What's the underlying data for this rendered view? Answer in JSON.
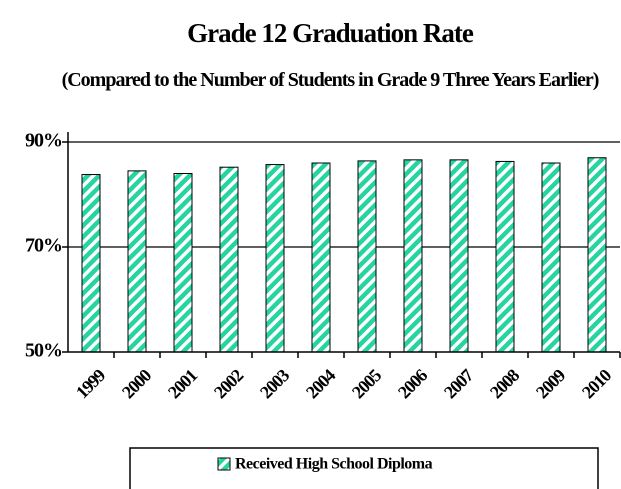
{
  "chart_data": {
    "type": "bar",
    "title": "Grade 12 Graduation Rate",
    "subtitle": "(Compared to the Number of Students in Grade 9 Three Years Earlier)",
    "categories": [
      "1999",
      "2000",
      "2001",
      "2002",
      "2003",
      "2004",
      "2005",
      "2006",
      "2007",
      "2008",
      "2009",
      "2010"
    ],
    "series": [
      {
        "name": "Received High School Diploma",
        "color": "#26d4a0",
        "values": [
          83.8,
          84.5,
          84.0,
          85.2,
          85.7,
          86.0,
          86.4,
          86.6,
          86.6,
          86.3,
          86.0,
          87.0
        ]
      }
    ],
    "ylim": [
      50,
      90
    ],
    "yticks": [
      {
        "value": 50,
        "label": "50%"
      },
      {
        "value": 70,
        "label": "70%"
      },
      {
        "value": 90,
        "label": "90%"
      }
    ],
    "grid": true,
    "legend": "bottom"
  }
}
